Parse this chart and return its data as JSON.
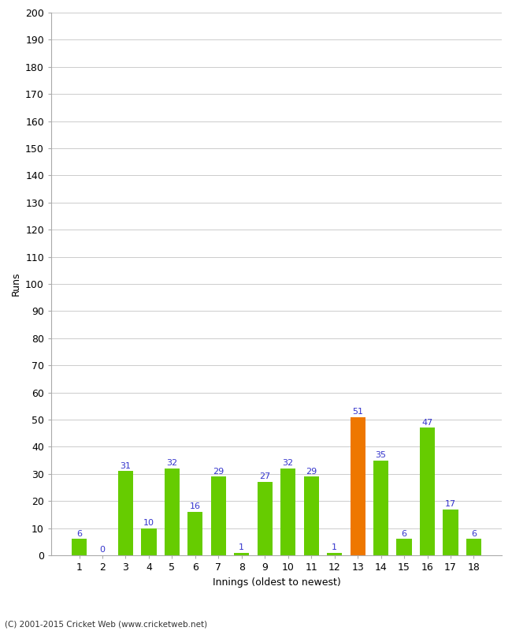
{
  "xlabel": "Innings (oldest to newest)",
  "ylabel": "Runs",
  "categories": [
    1,
    2,
    3,
    4,
    5,
    6,
    7,
    8,
    9,
    10,
    11,
    12,
    13,
    14,
    15,
    16,
    17,
    18
  ],
  "values": [
    6,
    0,
    31,
    10,
    32,
    16,
    29,
    1,
    27,
    32,
    29,
    1,
    51,
    35,
    6,
    47,
    17,
    6
  ],
  "bar_colors": [
    "#66cc00",
    "#66cc00",
    "#66cc00",
    "#66cc00",
    "#66cc00",
    "#66cc00",
    "#66cc00",
    "#66cc00",
    "#66cc00",
    "#66cc00",
    "#66cc00",
    "#66cc00",
    "#ee7700",
    "#66cc00",
    "#66cc00",
    "#66cc00",
    "#66cc00",
    "#66cc00"
  ],
  "ylim": [
    0,
    200
  ],
  "ytick_step": 10,
  "label_color": "#3333cc",
  "background_color": "#ffffff",
  "grid_color": "#cccccc",
  "footer": "(C) 2001-2015 Cricket Web (www.cricketweb.net)"
}
